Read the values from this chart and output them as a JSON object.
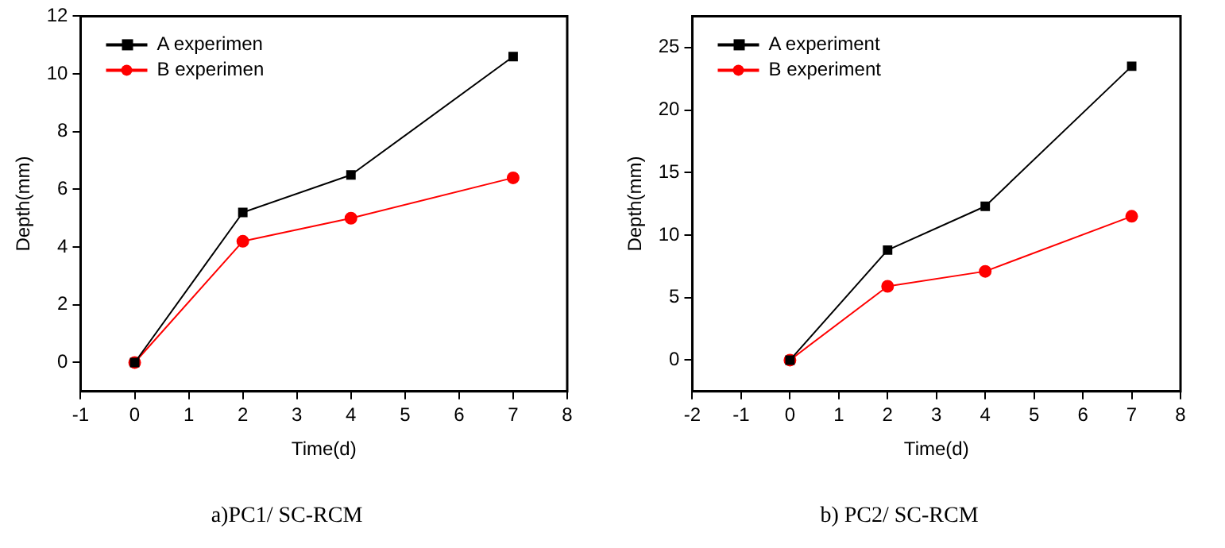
{
  "chart_data": [
    {
      "type": "line",
      "title": "a)PC1/ SC-RCM",
      "xlabel": "Time(d)",
      "ylabel": "Depth(mm)",
      "x": [
        0,
        2,
        4,
        7
      ],
      "xlim": [
        -1,
        8
      ],
      "xticks": [
        -1,
        0,
        1,
        2,
        3,
        4,
        5,
        6,
        7,
        8
      ],
      "ylim": [
        -1,
        12
      ],
      "yticks": [
        0,
        2,
        4,
        6,
        8,
        10,
        12
      ],
      "grid": false,
      "legend": "top left",
      "line_style": "solid",
      "series": [
        {
          "name": "A experimen",
          "color": "#000000",
          "marker": "square",
          "values": [
            0,
            5.2,
            6.5,
            10.6
          ]
        },
        {
          "name": "B experimen",
          "color": "#ff0000",
          "marker": "circle",
          "values": [
            0,
            4.2,
            5.0,
            6.4
          ]
        }
      ]
    },
    {
      "type": "line",
      "title": "b) PC2/ SC-RCM",
      "xlabel": "Time(d)",
      "ylabel": "Depth(mm)",
      "x": [
        0,
        2,
        4,
        7
      ],
      "xlim": [
        -2,
        8
      ],
      "xticks": [
        -2,
        -1,
        0,
        1,
        2,
        3,
        4,
        5,
        6,
        7,
        8
      ],
      "ylim": [
        -2.5,
        27.5
      ],
      "yticks": [
        0,
        5,
        10,
        15,
        20,
        25
      ],
      "grid": false,
      "legend": "top left",
      "line_style": "solid",
      "series": [
        {
          "name": "A experiment",
          "color": "#000000",
          "marker": "square",
          "values": [
            0,
            8.8,
            12.3,
            23.5
          ]
        },
        {
          "name": "B experiment",
          "color": "#ff0000",
          "marker": "circle",
          "values": [
            0,
            5.9,
            7.1,
            11.5
          ]
        }
      ]
    }
  ]
}
